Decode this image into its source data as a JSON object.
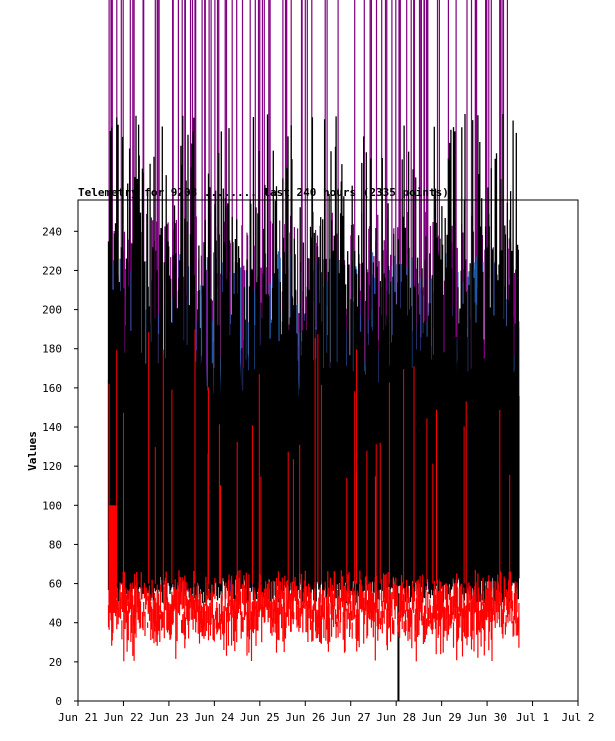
{
  "chart_data": {
    "type": "line",
    "title": "Telemetry for 9208 ........ last 240 hours (2335 points)",
    "xlabel": "",
    "ylabel": "Values",
    "ylim": [
      0,
      256
    ],
    "xlim": [
      "Jun 21",
      "Jul 2"
    ],
    "x_ticks": [
      "Jun 21",
      "Jun 22",
      "Jun 23",
      "Jun 24",
      "Jun 25",
      "Jun 26",
      "Jun 27",
      "Jun 28",
      "Jun 29",
      "Jun 30",
      "Jul 1",
      "Jul 2"
    ],
    "y_ticks": [
      0,
      20,
      40,
      60,
      80,
      100,
      120,
      140,
      160,
      180,
      200,
      220,
      240
    ],
    "grid": false,
    "data_start": "Jun 21 18:00",
    "data_end": "Jul 1 17:00",
    "series": [
      {
        "color": "#800080",
        "typical_range": [
          55,
          255
        ],
        "note_peak_values": [
          256,
          256,
          256
        ]
      },
      {
        "color": "#000000",
        "typical_range": [
          50,
          245
        ],
        "outlier": {
          "x": "Jun 28 00:00",
          "y": 0
        }
      },
      {
        "color": "#1e5aa8",
        "typical_range": [
          60,
          230
        ]
      },
      {
        "color": "#ff0000",
        "typical_range": [
          20,
          110
        ],
        "baseline_values": [
          40,
          45,
          50,
          55
        ]
      }
    ]
  }
}
